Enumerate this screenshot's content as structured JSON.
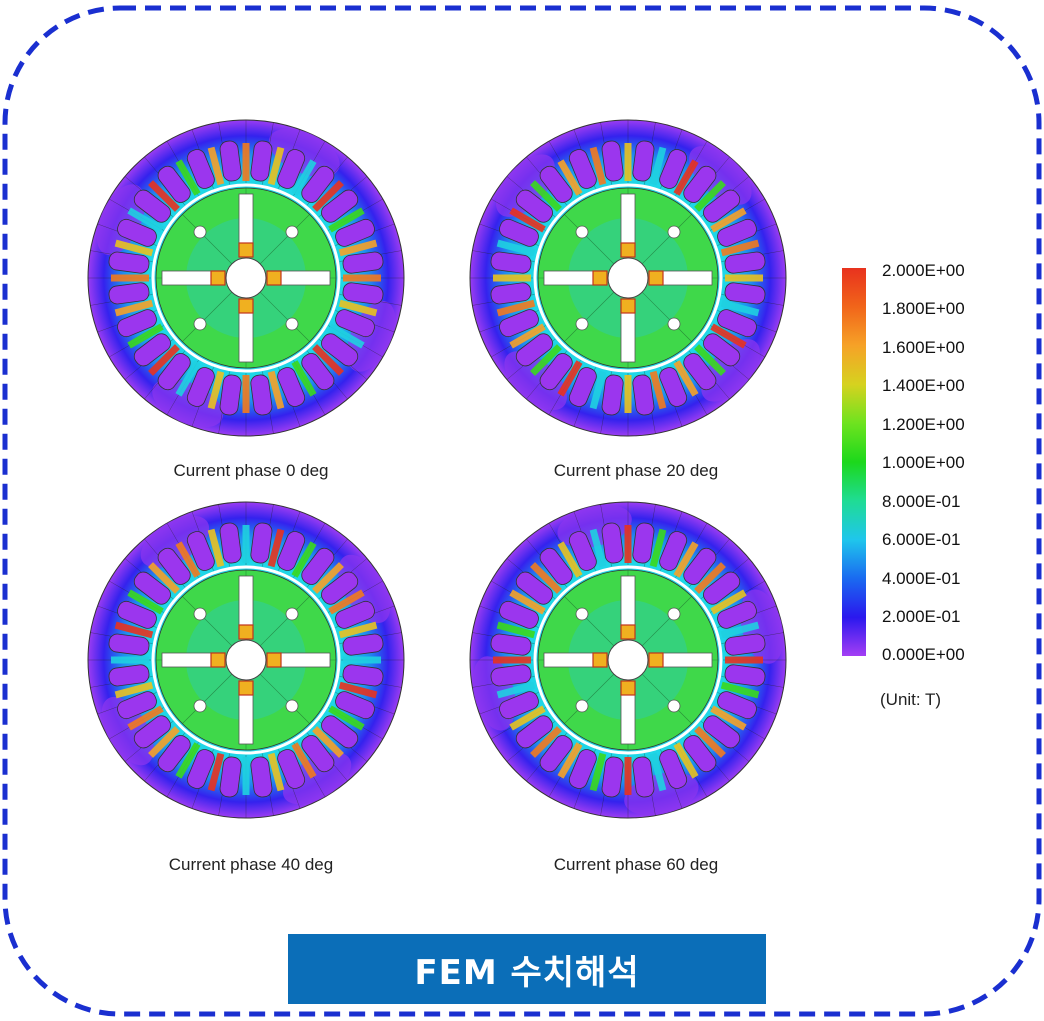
{
  "panels": [
    {
      "caption": "Current phase 0 deg"
    },
    {
      "caption": "Current phase 20 deg"
    },
    {
      "caption": "Current phase 40 deg"
    },
    {
      "caption": "Current phase 60 deg"
    }
  ],
  "legend": {
    "labels": [
      "2.000E+00",
      "1.800E+00",
      "1.600E+00",
      "1.400E+00",
      "1.200E+00",
      "1.000E+00",
      "8.000E-01",
      "6.000E-01",
      "4.000E-01",
      "2.000E-01",
      "0.000E+00"
    ],
    "unit": "(Unit: T)",
    "colors": [
      "#e8321e",
      "#f1651a",
      "#f6a227",
      "#d6d21f",
      "#6ee31f",
      "#1cd81c",
      "#1fdc94",
      "#1fc6ec",
      "#1a6af0",
      "#2a18ee",
      "#a43ef4"
    ]
  },
  "banner": {
    "label": "FEM 수치해석"
  },
  "frame": {
    "border_color": "#1a2fd0"
  }
}
